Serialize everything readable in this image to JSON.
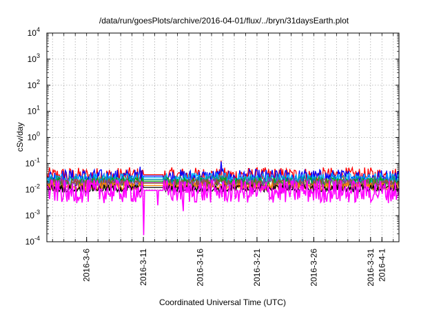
{
  "chart_data": {
    "type": "line",
    "title": "/data/run/goesPlots/archive/2016-04-01/flux/../bryn/31daysEarth.plot",
    "xlabel": "Coordinated Universal Time (UTC)",
    "ylabel": "cSv/day",
    "y_scale": "log",
    "ylim": [
      0.0001,
      10000
    ],
    "xlim": [
      "2016-03-02T12:00",
      "2016-04-02T12:00"
    ],
    "grid": true,
    "legend": "none",
    "y_ticks": [
      {
        "base": "10",
        "exp": "-4"
      },
      {
        "base": "10",
        "exp": "-3"
      },
      {
        "base": "10",
        "exp": "-2"
      },
      {
        "base": "10",
        "exp": "-1"
      },
      {
        "base": "10",
        "exp": "0"
      },
      {
        "base": "10",
        "exp": "1"
      },
      {
        "base": "10",
        "exp": "2"
      },
      {
        "base": "10",
        "exp": "3"
      },
      {
        "base": "10",
        "exp": "4"
      }
    ],
    "x_ticks": [
      {
        "label": "2016-3-6",
        "date": "2016-03-06"
      },
      {
        "label": "2016-3-11",
        "date": "2016-03-11"
      },
      {
        "label": "2016-3-16",
        "date": "2016-03-16"
      },
      {
        "label": "2016-3-21",
        "date": "2016-03-21"
      },
      {
        "label": "2016-3-26",
        "date": "2016-03-26"
      },
      {
        "label": "2016-3-31",
        "date": "2016-03-31"
      },
      {
        "label": "2016-4-1",
        "date": "2016-04-01"
      }
    ],
    "gap": {
      "start": "2016-03-11T00:00",
      "end": "2016-03-12T18:00"
    },
    "series": [
      {
        "color": "#ff0000",
        "base": 0.034,
        "spread": 0.32,
        "spikes": [
          {
            "x": "2016-03-17T20:00",
            "y": 0.13
          }
        ]
      },
      {
        "color": "#0000ff",
        "base": 0.03,
        "spread": 0.3,
        "spikes": [
          {
            "x": "2016-03-17T20:00",
            "y": 0.12
          },
          {
            "x": "2016-03-10T18:00",
            "y": 0.075
          }
        ]
      },
      {
        "color": "#00b4ff",
        "base": 0.026,
        "spread": 0.22,
        "spikes": []
      },
      {
        "color": "#009999",
        "base": 0.022,
        "spread": 0.2,
        "spikes": []
      },
      {
        "color": "#00aa00",
        "base": 0.019,
        "spread": 0.18,
        "spikes": []
      },
      {
        "color": "#9933cc",
        "base": 0.017,
        "spread": 0.2,
        "spikes": []
      },
      {
        "color": "#a0522d",
        "base": 0.016,
        "spread": 0.2,
        "spikes": []
      },
      {
        "color": "#ff8800",
        "base": 0.013,
        "spread": 0.15,
        "spikes": []
      },
      {
        "color": "#000000",
        "base": 0.011,
        "spread": 0.15,
        "spikes": []
      },
      {
        "color": "#ff00ff",
        "base": 0.0085,
        "spread": 0.45,
        "spikes": [
          {
            "x": "2016-03-11T00:00",
            "y": 0.00018
          },
          {
            "x": "2016-03-12T06:00",
            "y": 0.0025
          },
          {
            "x": "2016-03-14T12:00",
            "y": 0.0015
          },
          {
            "x": "2016-03-04T10:00",
            "y": 0.004
          }
        ]
      }
    ]
  }
}
